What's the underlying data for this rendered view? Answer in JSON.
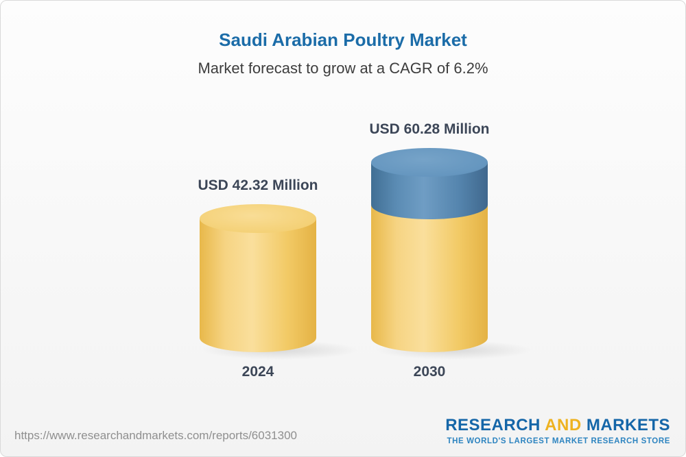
{
  "chart_data": {
    "type": "bar",
    "subtype": "3d-cylinder-stacked",
    "title": "Saudi Arabian Poultry Market",
    "subtitle": "Market forecast to grow at a CAGR of 6.2%",
    "cagr_percent": 6.2,
    "unit": "USD Million",
    "categories": [
      "2024",
      "2030"
    ],
    "values": [
      42.32,
      60.28
    ],
    "value_labels": [
      "USD 42.32 Million",
      "USD 60.28 Million"
    ],
    "segment_colors": {
      "base": "#F2C964",
      "growth": "#5586B0"
    },
    "ylim": [
      0,
      65
    ],
    "grid": false,
    "legend": "none"
  },
  "footer": {
    "url": "https://www.researchandmarkets.com/reports/6031300",
    "logo": {
      "part1": "RESEARCH",
      "part2": "AND",
      "part3": "MARKETS",
      "tagline": "THE WORLD'S LARGEST MARKET RESEARCH STORE"
    }
  },
  "colors": {
    "title_blue": "#1B6CA8",
    "subtitle_gray": "#3D3D3D",
    "label_dark": "#3C4657",
    "url_gray": "#8F8F8F",
    "logo_blue": "#1566A8",
    "logo_gold": "#EEB220",
    "tagline_blue": "#2D84C0"
  }
}
